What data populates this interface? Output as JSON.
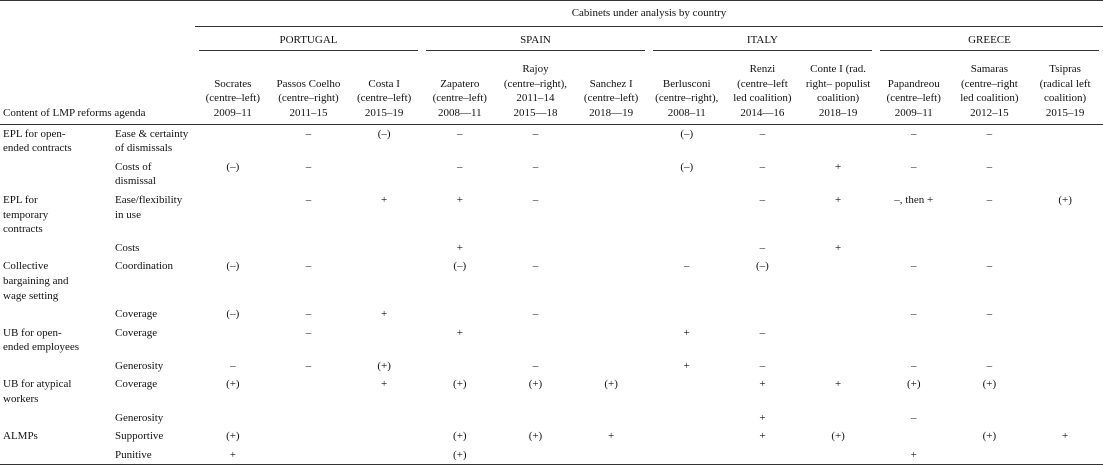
{
  "table": {
    "header": "Cabinets under analysis by country",
    "stub_header": "Content of LMP reforms agenda",
    "countries": [
      {
        "name": "PORTUGAL",
        "cabinets": [
          {
            "lines": [
              "Socrates",
              "(centre–left)",
              "2009–11"
            ]
          },
          {
            "lines": [
              "Passos Coelho",
              "(centre–right)",
              "2011–15"
            ]
          },
          {
            "lines": [
              "Costa I",
              "(centre–left)",
              "2015–19"
            ]
          }
        ]
      },
      {
        "name": "SPAIN",
        "cabinets": [
          {
            "lines": [
              "Zapatero",
              "(centre–left)",
              "2008—11"
            ]
          },
          {
            "lines": [
              "Rajoy",
              "(centre–right),",
              "2011–14",
              "2015—18"
            ]
          },
          {
            "lines": [
              "Sanchez I",
              "(centre–left)",
              "2018—19"
            ]
          }
        ]
      },
      {
        "name": "ITALY",
        "cabinets": [
          {
            "lines": [
              "Berlusconi",
              "(centre–right),",
              "2008–11"
            ]
          },
          {
            "lines": [
              "Renzi",
              "(centre–left",
              "led coalition)",
              "2014—16"
            ]
          },
          {
            "lines": [
              "Conte I (rad.",
              "right– populist",
              "coalition)",
              "2018–19"
            ]
          }
        ]
      },
      {
        "name": "GREECE",
        "cabinets": [
          {
            "lines": [
              "Papandreou",
              "(centre–left)",
              "2009–11"
            ]
          },
          {
            "lines": [
              "Samaras",
              "(centre–right",
              "led coalition)",
              "2012–15"
            ]
          },
          {
            "lines": [
              "Tsipras",
              "(radical left",
              "coalition)",
              "2015–19"
            ]
          }
        ]
      }
    ],
    "rows": [
      {
        "group": "EPL for open-ended contracts",
        "item": "Ease & certainty of dismissals",
        "cells": [
          null,
          "–",
          "(–)",
          "–",
          "–",
          null,
          "(–)",
          "–",
          null,
          "–",
          "–",
          null
        ]
      },
      {
        "group": null,
        "item": "Costs of dismissal",
        "cells": [
          "(–)",
          "–",
          null,
          "–",
          "–",
          null,
          "(–)",
          "–",
          "+",
          "–",
          "–",
          null
        ]
      },
      {
        "group": "EPL for temporary contracts",
        "item": "Ease/flexibility in use",
        "cells": [
          null,
          "–",
          "+",
          "+",
          "–",
          null,
          null,
          "–",
          "+",
          "–, then +",
          "–",
          "(+)"
        ]
      },
      {
        "group": null,
        "item": "Costs",
        "cells": [
          null,
          null,
          null,
          "+",
          null,
          null,
          null,
          "–",
          "+",
          null,
          null,
          null
        ]
      },
      {
        "group": "Collective bargaining and wage setting",
        "item": "Coordination",
        "cells": [
          "(–)",
          "–",
          null,
          "(–)",
          "–",
          null,
          "–",
          "(–)",
          null,
          "–",
          "–",
          null
        ]
      },
      {
        "group": null,
        "item": "Coverage",
        "cells": [
          "(–)",
          "–",
          "+",
          null,
          "–",
          null,
          null,
          null,
          null,
          "–",
          "–",
          null
        ]
      },
      {
        "group": "UB for open-ended employees",
        "item": "Coverage",
        "cells": [
          null,
          "–",
          null,
          "+",
          null,
          null,
          "+",
          "–",
          null,
          null,
          null,
          null
        ]
      },
      {
        "group": null,
        "item": "Generosity",
        "cells": [
          "–",
          "–",
          "(+)",
          null,
          "–",
          null,
          "+",
          "–",
          null,
          "–",
          "–",
          null
        ]
      },
      {
        "group": "UB for atypical workers",
        "item": "Coverage",
        "cells": [
          "(+)",
          null,
          "+",
          "(+)",
          "(+)",
          "(+)",
          null,
          "+",
          "+",
          "(+)",
          "(+)",
          null
        ]
      },
      {
        "group": null,
        "item": "Generosity",
        "cells": [
          null,
          null,
          null,
          null,
          null,
          null,
          null,
          "+",
          null,
          "–",
          null,
          null
        ]
      },
      {
        "group": "ALMPs",
        "item": "Supportive",
        "cells": [
          "(+)",
          null,
          null,
          "(+)",
          "(+)",
          "+",
          null,
          "+",
          "(+)",
          null,
          "(+)",
          "+"
        ]
      },
      {
        "group": null,
        "item": "Punitive",
        "cells": [
          "+",
          null,
          null,
          "(+)",
          null,
          null,
          null,
          null,
          null,
          "+",
          null,
          null
        ]
      }
    ]
  }
}
